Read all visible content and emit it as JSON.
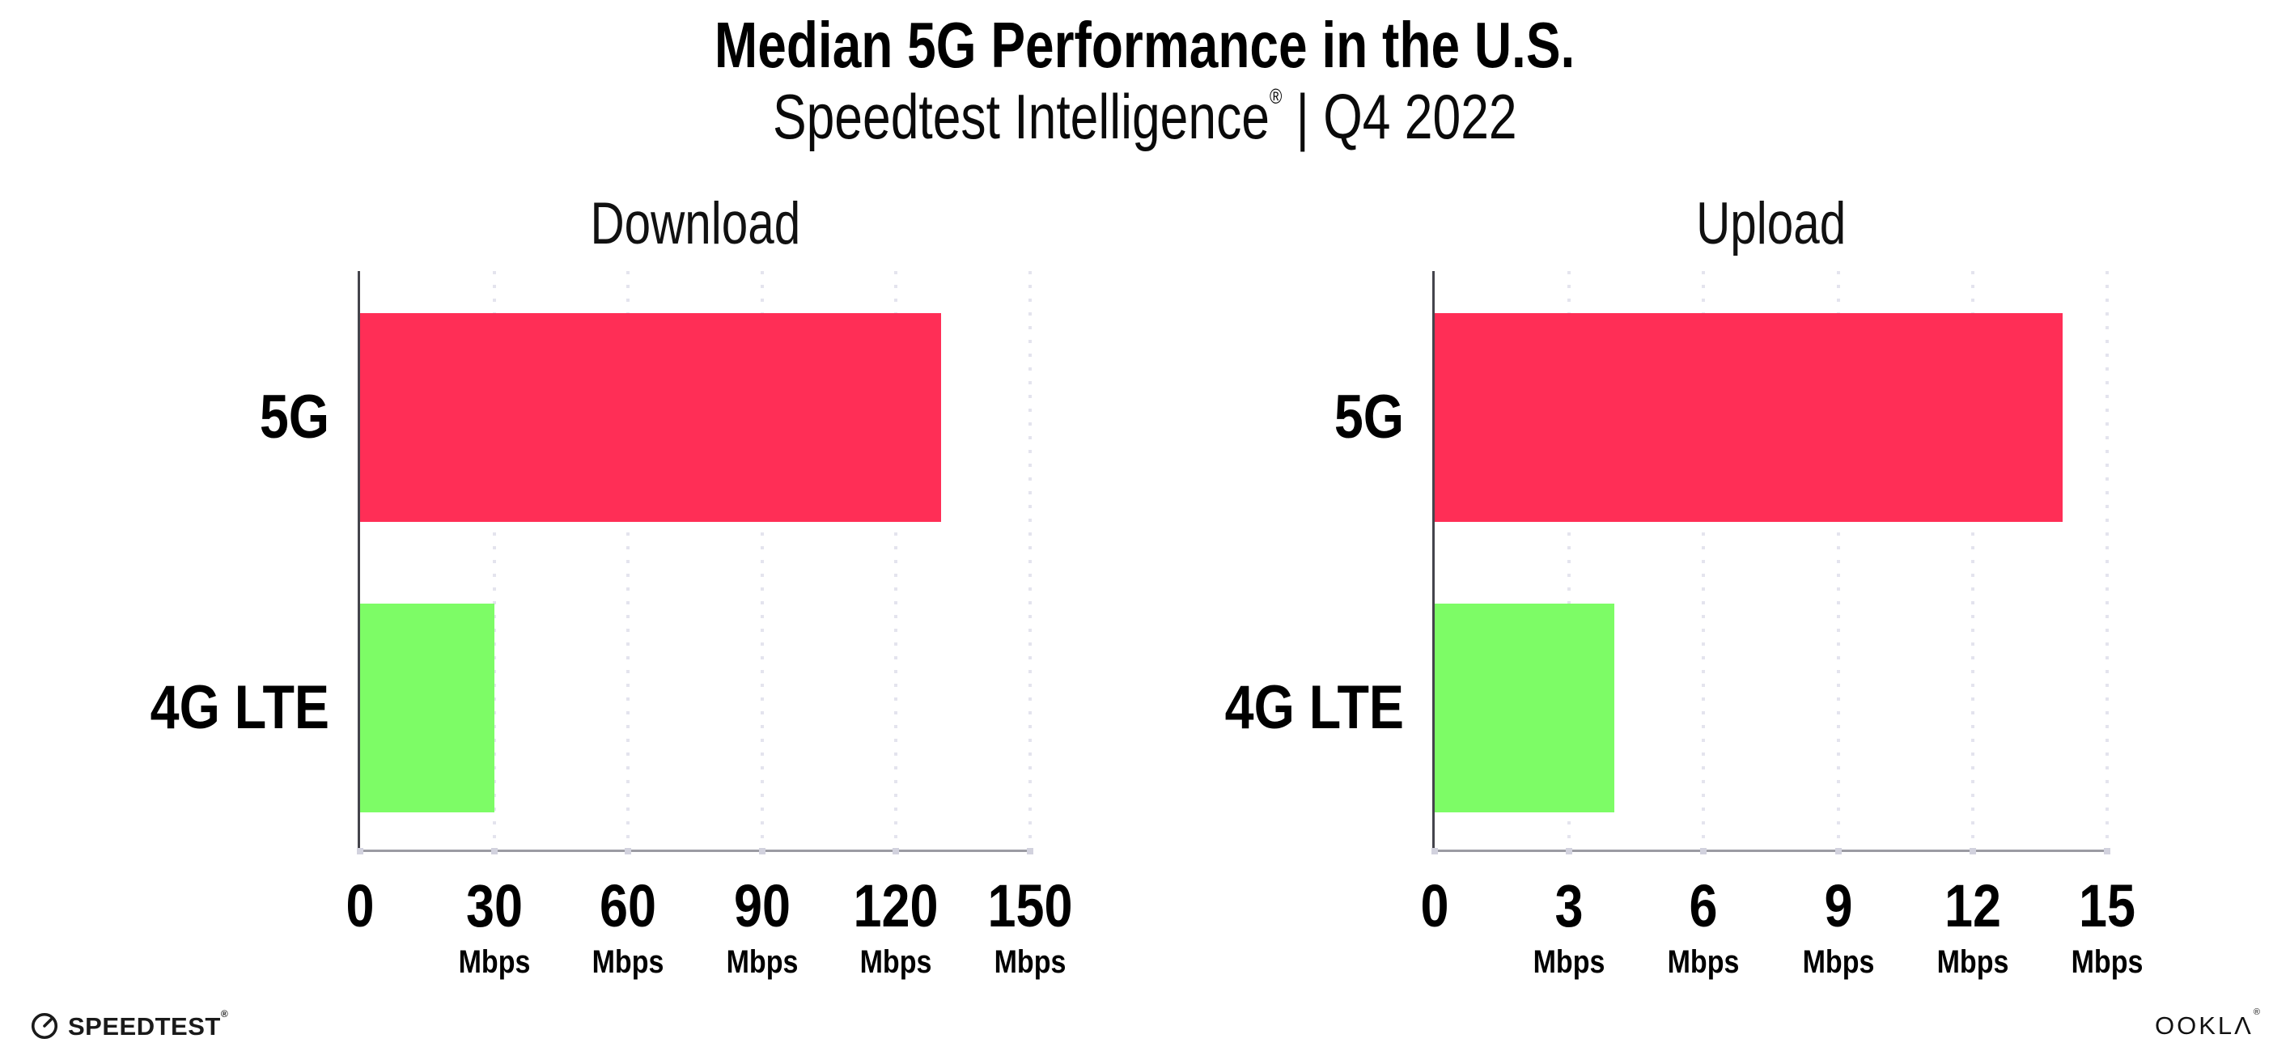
{
  "header": {
    "title": "Median 5G Performance in the U.S.",
    "subtitle_brand": "Speedtest Intelligence",
    "subtitle_reg": "®",
    "subtitle_rest": " | Q4 2022"
  },
  "colors": {
    "bar_5g": "#ff2e56",
    "bar_4g": "#7dfc66",
    "gridline": "#e4e4ee",
    "y_axis": "#44444c",
    "x_axis": "#9b9ba3",
    "text": "#000000"
  },
  "chart_data": [
    {
      "type": "bar",
      "orientation": "horizontal",
      "title": "Download",
      "categories": [
        "5G",
        "4G LTE"
      ],
      "values": [
        130,
        30
      ],
      "unit": "Mbps",
      "xlim": [
        0,
        150
      ],
      "xticks": [
        0,
        30,
        60,
        90,
        120,
        150
      ],
      "series_colors": [
        "#ff2e56",
        "#7dfc66"
      ],
      "grid": "dotted vertical gridlines at each tick",
      "legend": "none"
    },
    {
      "type": "bar",
      "orientation": "horizontal",
      "title": "Upload",
      "categories": [
        "5G",
        "4G LTE"
      ],
      "values": [
        14,
        4
      ],
      "unit": "Mbps",
      "xlim": [
        0,
        15
      ],
      "xticks": [
        0,
        3,
        6,
        9,
        12,
        15
      ],
      "series_colors": [
        "#ff2e56",
        "#7dfc66"
      ],
      "grid": "dotted vertical gridlines at each tick",
      "legend": "none"
    }
  ],
  "footer": {
    "speedtest_wordmark": "SPEEDTEST",
    "speedtest_reg": "®",
    "speedtest_icon": "gauge-icon",
    "ookla_wordmark": "OOKLΛ",
    "ookla_reg": "®"
  }
}
